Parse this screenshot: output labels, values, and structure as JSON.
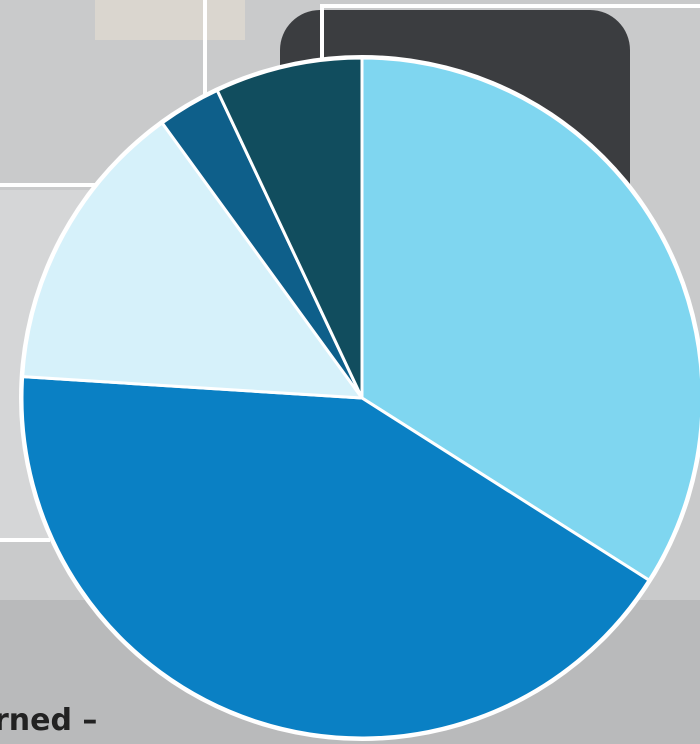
{
  "chart_data": {
    "type": "pie",
    "values": [
      34,
      42,
      14,
      3,
      7
    ],
    "colors": [
      "#7fd6f0",
      "#0a80c4",
      "#d6f1fa",
      "#0e5f8a",
      "#114d5e"
    ],
    "annotation": "rned –"
  }
}
